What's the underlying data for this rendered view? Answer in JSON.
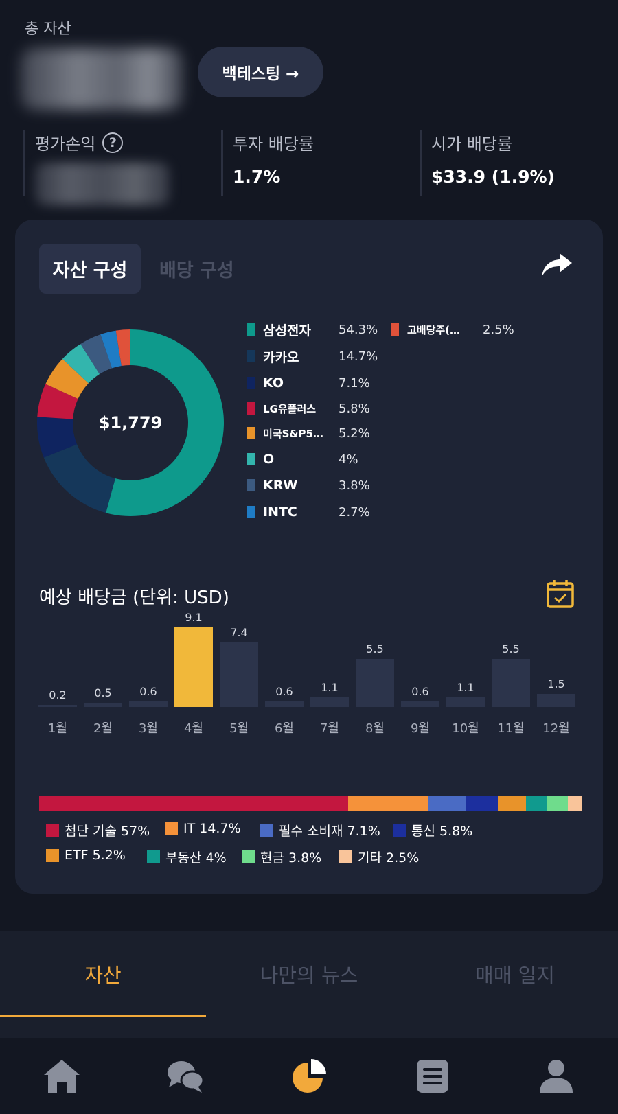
{
  "header": {
    "total_assets_label": "총 자산",
    "backtest_label": "백테스팅 →"
  },
  "stats": {
    "pl_label": "평가손익",
    "help_icon": "?",
    "invest_yield_label": "투자 배당률",
    "invest_yield_value": "1.7%",
    "market_yield_label": "시가 배당률",
    "market_yield_value": "$33.9 (1.9%)"
  },
  "card": {
    "tabs": [
      "자산 구성",
      "배당 구성"
    ],
    "share_icon": "share-icon",
    "donut_center": "$1,779"
  },
  "holdings": [
    {
      "name": "삼성전자",
      "pct": "54.3%",
      "value": 54.3,
      "color": "#0e9a8c"
    },
    {
      "name": "카카오",
      "pct": "14.7%",
      "value": 14.7,
      "color": "#15375a"
    },
    {
      "name": "KO",
      "pct": "7.1%",
      "value": 7.1,
      "color": "#0f2460"
    },
    {
      "name": "LG유플러스",
      "pct": "5.8%",
      "value": 5.8,
      "color": "#c3173f"
    },
    {
      "name": "미국S&P5…",
      "pct": "5.2%",
      "value": 5.2,
      "color": "#e8932a"
    },
    {
      "name": "O",
      "pct": "4%",
      "value": 4,
      "color": "#33b5ad"
    },
    {
      "name": "KRW",
      "pct": "3.8%",
      "value": 3.8,
      "color": "#3c5a80"
    },
    {
      "name": "INTC",
      "pct": "2.7%",
      "value": 2.7,
      "color": "#1f7cc5"
    },
    {
      "name": "고배당주(…",
      "pct": "2.5%",
      "value": 2.5,
      "color": "#e0523a"
    }
  ],
  "dividends": {
    "title": "예상 배당금 (단위: USD)",
    "calendar_icon": "calendar-check-icon",
    "highlight_color": "#f1b83a"
  },
  "chart_data": {
    "type": "bar",
    "title": "예상 배당금 (단위: USD)",
    "categories": [
      "1월",
      "2월",
      "3월",
      "4월",
      "5월",
      "6월",
      "7월",
      "8월",
      "9월",
      "10월",
      "11월",
      "12월"
    ],
    "values": [
      0.2,
      0.5,
      0.6,
      9.1,
      7.4,
      0.6,
      1.1,
      5.5,
      0.6,
      1.1,
      5.5,
      1.5
    ],
    "value_labels": [
      "0.2",
      "0.5",
      "0.6",
      "9.1",
      "7.4",
      "0.6",
      "1.1",
      "5.5",
      "0.6",
      "1.1",
      "5.5",
      "1.5"
    ],
    "highlighted_category": "4월",
    "ylim": [
      0,
      9.1
    ],
    "grid": false
  },
  "sectors": [
    {
      "label": "첨단 기술 57%",
      "value": 57,
      "color": "#c3173f"
    },
    {
      "label": "IT 14.7%",
      "value": 14.7,
      "color": "#f5923a"
    },
    {
      "label": "필수 소비재 7.1%",
      "value": 7.1,
      "color": "#4a6bc4"
    },
    {
      "label": "통신 5.8%",
      "value": 5.8,
      "color": "#1c2f9e"
    },
    {
      "label": "ETF 5.2%",
      "value": 5.2,
      "color": "#e8932a"
    },
    {
      "label": "부동산 4%",
      "value": 4,
      "color": "#109a8e"
    },
    {
      "label": "현금 3.8%",
      "value": 3.8,
      "color": "#6fdc8c"
    },
    {
      "label": "기타 2.5%",
      "value": 2.5,
      "color": "#f9c49a"
    }
  ],
  "subtabs": [
    "자산",
    "나만의 뉴스",
    "매매 일지"
  ],
  "nav": [
    {
      "icon": "home-icon"
    },
    {
      "icon": "chat-icon"
    },
    {
      "icon": "portfolio-pie-icon",
      "active": true
    },
    {
      "icon": "document-list-icon"
    },
    {
      "icon": "profile-icon"
    }
  ],
  "colors": {
    "accent": "#f2a93b",
    "background": "#131722",
    "card": "#1e2435"
  }
}
